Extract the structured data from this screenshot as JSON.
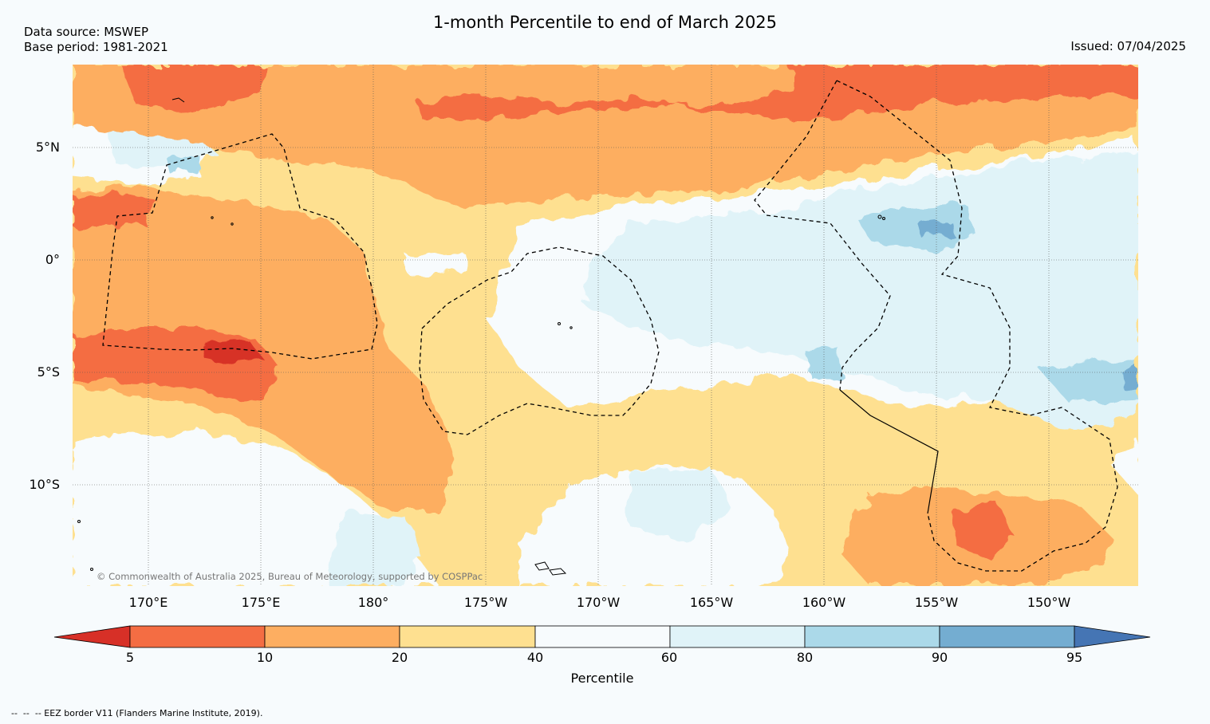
{
  "header": {
    "title": "1-month Percentile to end of March 2025",
    "data_source": "Data source: MSWEP",
    "base_period": "Base period: 1981-2021",
    "issued": "Issued: 07/04/2025"
  },
  "map": {
    "lat_labels": [
      "5°N",
      "0°",
      "5°S",
      "10°S"
    ],
    "lon_labels": [
      "170°E",
      "175°E",
      "180°",
      "175°W",
      "170°W",
      "165°W",
      "160°W",
      "155°W",
      "150°W"
    ],
    "copyright": "© Commonwealth of Australia 2025, Bureau of Meteorology, supported by COSPPac",
    "category_colors": {
      "lt5": "#d73027",
      "5_10": "#f46d43",
      "10_20": "#fdae61",
      "20_40": "#fee090",
      "40_60": "#f7fbfd",
      "60_80": "#e0f3f8",
      "80_90": "#abd9e9",
      "90_95": "#74add1",
      "gt95": "#4575b4"
    }
  },
  "colorbar": {
    "ticks": [
      "5",
      "10",
      "20",
      "40",
      "60",
      "80",
      "90",
      "95"
    ],
    "title": "Percentile"
  },
  "footnote": "--  --  -- EEZ border V11 (Flanders Marine Institute, 2019)."
}
